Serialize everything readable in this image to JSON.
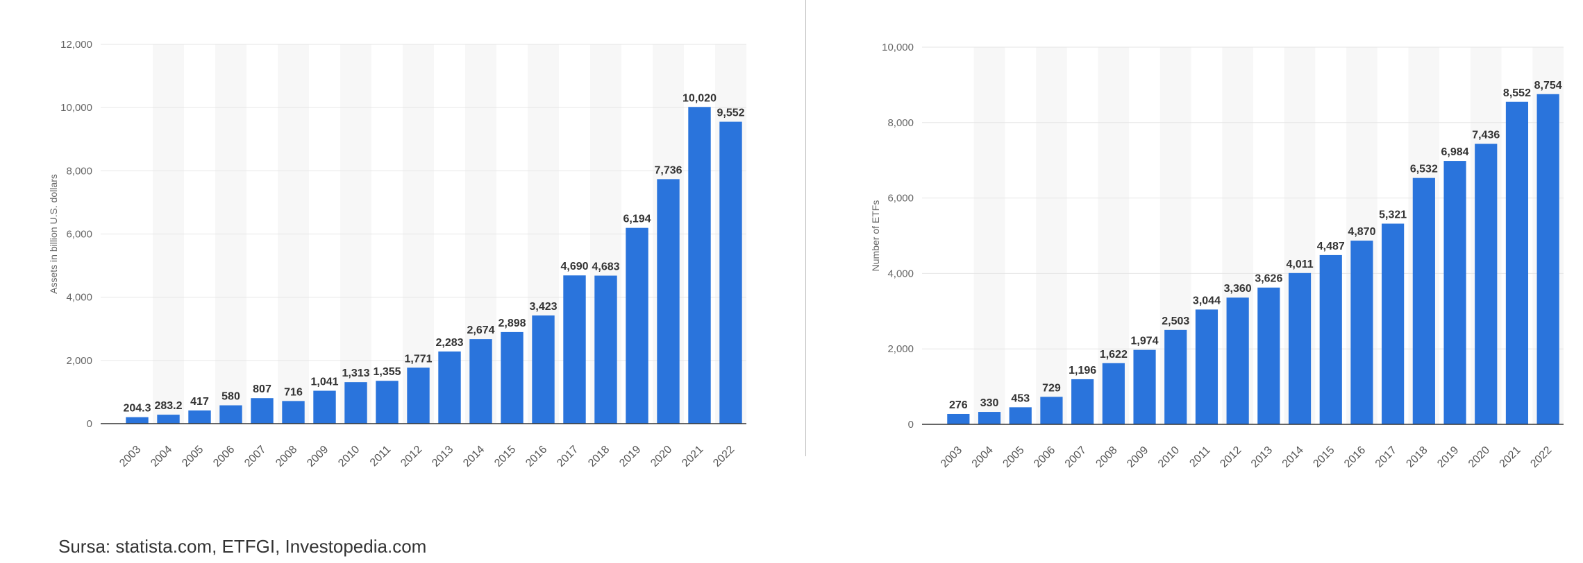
{
  "source": "Sursa: statista.com, ETFGI, Investopedia.com",
  "colors": {
    "bar": "#2a74dc",
    "band": "#f7f7f7",
    "grid": "#e6e6e6",
    "axis": "#333333",
    "tick": "#666666",
    "label": "#333333"
  },
  "chart_data": [
    {
      "type": "bar",
      "title": "",
      "xlabel": "",
      "ylabel": "Assets in billion U.S. dollars",
      "ylim": [
        0,
        12000
      ],
      "yticks": [
        "0",
        "2,000",
        "4,000",
        "6,000",
        "8,000",
        "10,000",
        "12,000"
      ],
      "grid": true,
      "categories": [
        "2003",
        "2004",
        "2005",
        "2006",
        "2007",
        "2008",
        "2009",
        "2010",
        "2011",
        "2012",
        "2013",
        "2014",
        "2015",
        "2016",
        "2017",
        "2018",
        "2019",
        "2020",
        "2021",
        "2022"
      ],
      "values": [
        204.3,
        283.2,
        417,
        580,
        807,
        716,
        1041,
        1313,
        1355,
        1771,
        2283,
        2674,
        2898,
        3423,
        4690,
        4683,
        6194,
        7736,
        10020,
        9552
      ],
      "value_labels": [
        "204.3",
        "283.2",
        "417",
        "580",
        "807",
        "716",
        "1,041",
        "1,313",
        "1,355",
        "1,771",
        "2,283",
        "2,674",
        "2,898",
        "3,423",
        "4,690",
        "4,683",
        "6,194",
        "7,736",
        "10,020",
        "9,552"
      ]
    },
    {
      "type": "bar",
      "title": "",
      "xlabel": "",
      "ylabel": "Number of ETFs",
      "ylim": [
        0,
        10000
      ],
      "yticks": [
        "0",
        "2,000",
        "4,000",
        "6,000",
        "8,000",
        "10,000"
      ],
      "grid": true,
      "categories": [
        "2003",
        "2004",
        "2005",
        "2006",
        "2007",
        "2008",
        "2009",
        "2010",
        "2011",
        "2012",
        "2013",
        "2014",
        "2015",
        "2016",
        "2017",
        "2018",
        "2019",
        "2020",
        "2021",
        "2022"
      ],
      "values": [
        276,
        330,
        453,
        729,
        1196,
        1622,
        1974,
        2503,
        3044,
        3360,
        3626,
        4011,
        4487,
        4870,
        5321,
        6532,
        6984,
        7436,
        8552,
        8754
      ],
      "value_labels": [
        "276",
        "330",
        "453",
        "729",
        "1,196",
        "1,622",
        "1,974",
        "2,503",
        "3,044",
        "3,360",
        "3,626",
        "4,011",
        "4,487",
        "4,870",
        "5,321",
        "6,532",
        "6,984",
        "7,436",
        "8,552",
        "8,754"
      ]
    }
  ]
}
